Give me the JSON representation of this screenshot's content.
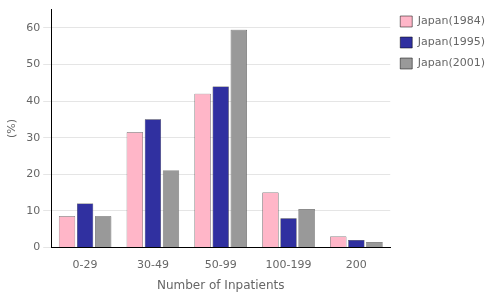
{
  "chart_data": {
    "type": "bar",
    "categories": [
      "0-29",
      "30-49",
      "50-99",
      "100-199",
      "200"
    ],
    "series": [
      {
        "name": "Japan(1984)",
        "color": "#FFB6C8",
        "values": [
          8.5,
          31.5,
          42.0,
          15.0,
          3.0
        ]
      },
      {
        "name": "Japan(1995)",
        "color": "#3030A0",
        "values": [
          12.0,
          35.0,
          44.0,
          8.0,
          2.0
        ]
      },
      {
        "name": "Japan(2001)",
        "color": "#999999",
        "values": [
          8.5,
          21.0,
          59.5,
          10.5,
          1.5
        ]
      }
    ],
    "xlabel": "Number of Inpatients",
    "ylabel": "(%)",
    "ylim": [
      0,
      65
    ],
    "yticks": [
      0,
      10,
      20,
      30,
      40,
      50,
      60
    ],
    "grid": "y",
    "legend": "right"
  }
}
